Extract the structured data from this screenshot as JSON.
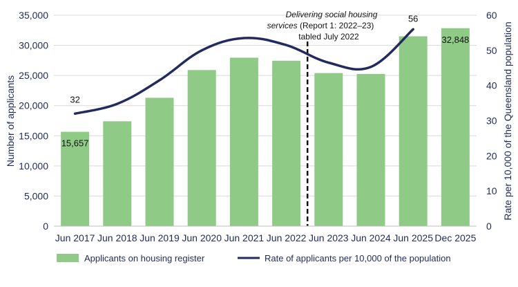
{
  "chart_data": {
    "type": "bar",
    "categories": [
      "Jun 2017",
      "Jun 2018",
      "Jun 2019",
      "Jun 2020",
      "Jun 2021",
      "Jun 2022",
      "Jun 2023",
      "Jun 2024",
      "Jun 2025",
      "Dec 2025"
    ],
    "series": [
      {
        "name": "Applicants on housing register",
        "type": "bar",
        "axis": "left",
        "color": "#8fcb86",
        "values": [
          15657,
          17400,
          21300,
          25900,
          27950,
          27450,
          25400,
          25250,
          31500,
          32848
        ]
      },
      {
        "name": "Rate of applicants per 10,000 of the population",
        "type": "line",
        "axis": "right",
        "color": "#222a5e",
        "values": [
          32,
          34.8,
          41.5,
          50,
          53.5,
          51.5,
          46.5,
          45.3,
          56,
          null
        ]
      }
    ],
    "ylabel": "Number of applicants",
    "y2label": "Rate per 10,000 of the Queensland population",
    "ylim": [
      0,
      35000
    ],
    "y2lim": [
      0,
      60
    ],
    "yticks": [
      "0",
      "5,000",
      "10,000",
      "15,000",
      "20,000",
      "25,000",
      "30,000",
      "35,000"
    ],
    "y2ticks": [
      "0",
      "10",
      "20",
      "30",
      "40",
      "50",
      "60"
    ],
    "data_labels": {
      "first_bar": "15,657",
      "last_bar": "32,848",
      "first_rate": "32",
      "last_rate": "56"
    },
    "annotation": {
      "line1_italic": "Delivering social housing",
      "line2_italic": "services",
      "line2_rest": " (Report 1: 2022–23)",
      "line3": "tabled July 2022"
    },
    "legend_position": "bottom",
    "grid": true
  }
}
